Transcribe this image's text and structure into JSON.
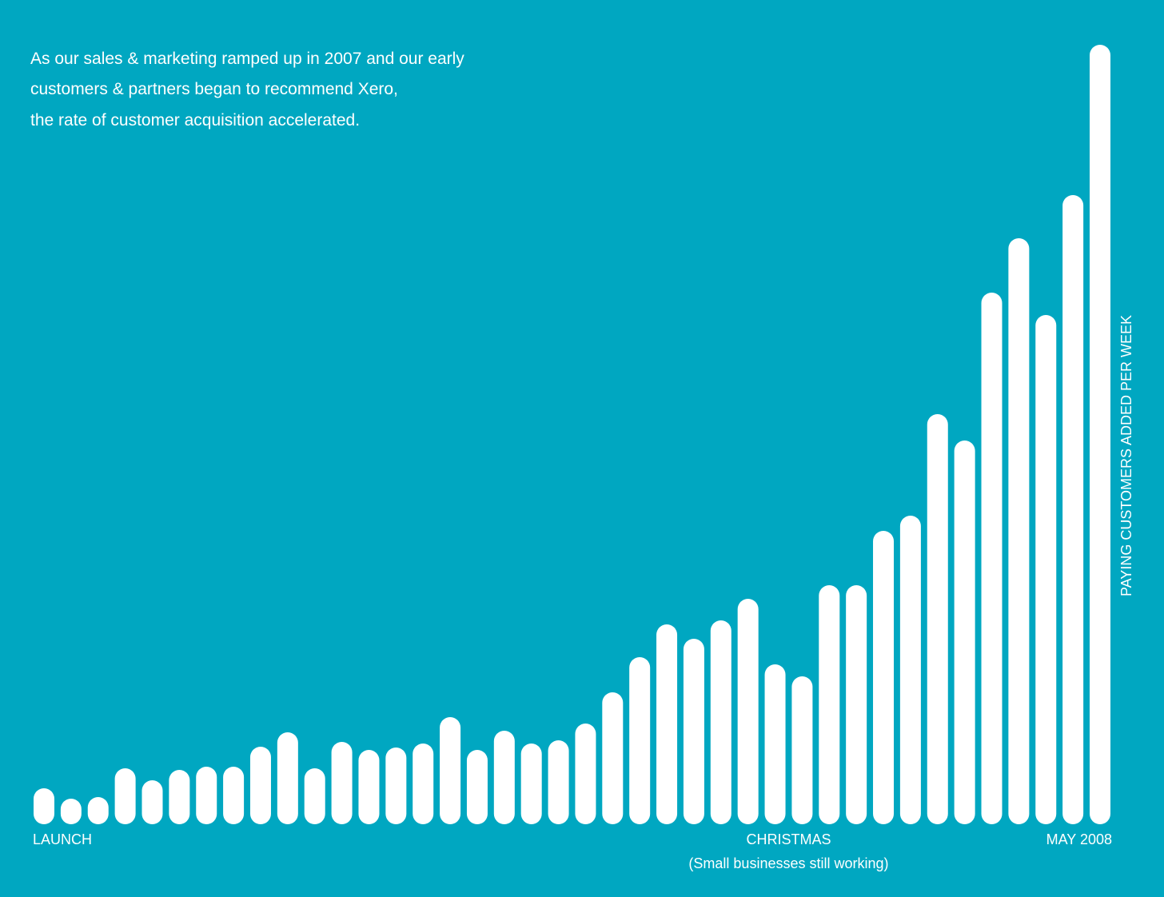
{
  "chart_data": {
    "type": "bar",
    "description": [
      "As our sales & marketing ramped up in 2007 and our early",
      "customers & partners began to recommend Xero,",
      "the rate of customer acquisition accelerated."
    ],
    "y_axis_label": "PAYING CUSTOMERS ADDED PER WEEK",
    "categories": [
      "LAUNCH",
      null,
      null,
      null,
      null,
      null,
      null,
      null,
      null,
      null,
      null,
      null,
      null,
      null,
      null,
      null,
      null,
      null,
      null,
      null,
      null,
      null,
      null,
      null,
      null,
      null,
      null,
      null,
      "CHRISTMAS",
      null,
      null,
      null,
      null,
      null,
      null,
      null,
      null,
      null,
      null,
      "MAY 2008"
    ],
    "annotation": "(Small businesses still working)",
    "values": [
      45,
      32,
      34,
      70,
      55,
      68,
      72,
      72,
      97,
      115,
      70,
      103,
      93,
      96,
      101,
      134,
      93,
      117,
      101,
      105,
      126,
      165,
      209,
      250,
      232,
      255,
      282,
      200,
      185,
      299,
      299,
      367,
      386,
      513,
      480,
      665,
      733,
      637,
      787,
      975
    ],
    "color": "#ffffff"
  }
}
